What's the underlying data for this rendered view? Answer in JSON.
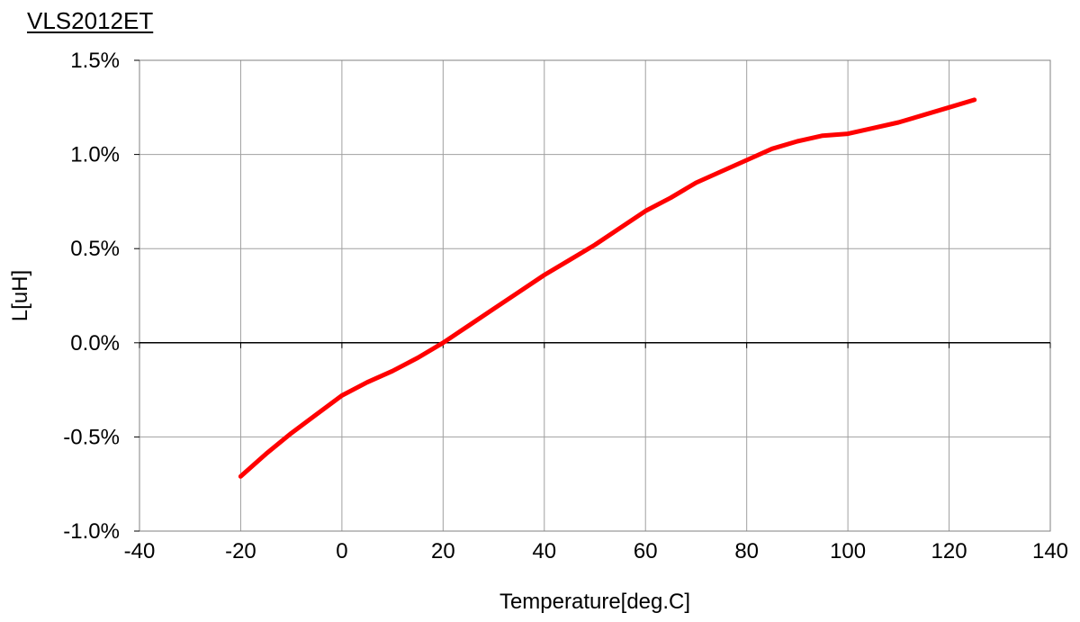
{
  "chart_data": {
    "type": "line",
    "title": "VLS2012ET",
    "xlabel": "Temperature[deg.C]",
    "ylabel": "L[uH]",
    "xlim": [
      -40,
      140
    ],
    "ylim": [
      -1.0,
      1.5
    ],
    "x_ticks": [
      -40,
      -20,
      0,
      20,
      40,
      60,
      80,
      100,
      120,
      140
    ],
    "x_tick_labels": [
      "-40",
      "-20",
      "0",
      "20",
      "40",
      "60",
      "80",
      "100",
      "120",
      "140"
    ],
    "y_ticks": [
      -1.0,
      -0.5,
      0.0,
      0.5,
      1.0,
      1.5
    ],
    "y_tick_labels": [
      "-1.0%",
      "-0.5%",
      "0.0%",
      "0.5%",
      "1.0%",
      "1.5%"
    ],
    "grid": true,
    "series": [
      {
        "color": "#ff0000",
        "x": [
          -20,
          -15,
          -10,
          -5,
          0,
          5,
          10,
          15,
          20,
          25,
          30,
          35,
          40,
          45,
          50,
          55,
          60,
          65,
          70,
          75,
          80,
          85,
          90,
          95,
          100,
          105,
          110,
          115,
          120,
          125
        ],
        "y": [
          -0.71,
          -0.59,
          -0.48,
          -0.38,
          -0.28,
          -0.21,
          -0.15,
          -0.08,
          0.0,
          0.09,
          0.18,
          0.27,
          0.36,
          0.44,
          0.52,
          0.61,
          0.7,
          0.77,
          0.85,
          0.91,
          0.97,
          1.03,
          1.07,
          1.1,
          1.11,
          1.14,
          1.17,
          1.21,
          1.25,
          1.29
        ]
      }
    ]
  }
}
